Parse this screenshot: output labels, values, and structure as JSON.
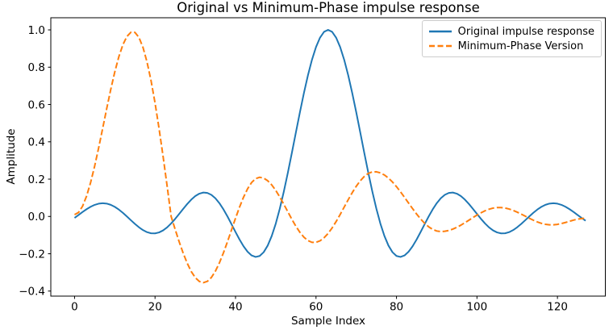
{
  "figure": {
    "background": "#ffffff",
    "text_color": "#000000",
    "spine_color": "#000000"
  },
  "chart_data": {
    "type": "line",
    "title": "Original vs Minimum-Phase impulse response",
    "xlabel": "Sample Index",
    "ylabel": "Amplitude",
    "grid": false,
    "legend": {
      "position": "upper right",
      "border_color": "#cccccc",
      "background": "#ffffff"
    },
    "xlim": [
      -5.9,
      131.9
    ],
    "ylim": [
      -0.427,
      1.065
    ],
    "x_ticks": {
      "values": [
        0,
        20,
        40,
        60,
        80,
        100,
        120
      ],
      "labels": [
        "0",
        "20",
        "40",
        "60",
        "80",
        "100",
        "120"
      ]
    },
    "y_ticks": {
      "values": [
        -0.4,
        -0.2,
        0.0,
        0.2,
        0.4,
        0.6,
        0.8,
        1.0
      ],
      "labels": [
        "−0.4",
        "−0.2",
        "0.0",
        "0.2",
        "0.4",
        "0.6",
        "0.8",
        "1.0"
      ]
    },
    "x_start": 0,
    "x_step": 1,
    "n_samples": 128,
    "series": [
      {
        "name": "Original impulse response",
        "color": "#1f77b4",
        "style": "solid",
        "linewidth": 2,
        "values": [
          -0.0079,
          0.008,
          0.024,
          0.039,
          0.052,
          0.0621,
          0.0686,
          0.0709,
          0.0688,
          0.0622,
          0.0514,
          0.0369,
          0.0194,
          0.0,
          -0.0202,
          -0.0399,
          -0.058,
          -0.073,
          -0.0841,
          -0.0903,
          -0.0909,
          -0.0857,
          -0.0748,
          -0.0585,
          -0.0376,
          -0.0131,
          0.0135,
          0.0407,
          0.0668,
          0.0902,
          0.1091,
          0.1221,
          0.1281,
          0.1261,
          0.1158,
          0.0973,
          0.071,
          0.0381,
          0.0,
          -0.0412,
          -0.0833,
          -0.1238,
          -0.16,
          -0.1892,
          -0.209,
          -0.2171,
          -0.2118,
          -0.1916,
          -0.1559,
          -0.1046,
          -0.0384,
          0.0416,
          0.1332,
          0.2339,
          0.3406,
          0.45,
          0.5584,
          0.6618,
          0.7568,
          0.8399,
          0.9079,
          0.9584,
          0.9895,
          1.0,
          0.9895,
          0.9584,
          0.9079,
          0.8399,
          0.7568,
          0.6618,
          0.5584,
          0.45,
          0.3406,
          0.2339,
          0.1332,
          0.0416,
          -0.0384,
          -0.1046,
          -0.1559,
          -0.1916,
          -0.2118,
          -0.2171,
          -0.209,
          -0.1892,
          -0.16,
          -0.1238,
          -0.0833,
          -0.0412,
          0.0,
          0.0381,
          0.071,
          0.0973,
          0.1158,
          0.1261,
          0.1281,
          0.1221,
          0.1091,
          0.0902,
          0.0668,
          0.0407,
          0.0135,
          -0.0131,
          -0.0376,
          -0.0585,
          -0.0748,
          -0.0857,
          -0.0909,
          -0.0903,
          -0.0841,
          -0.073,
          -0.058,
          -0.0399,
          -0.0202,
          0.0,
          0.0194,
          0.0369,
          0.0514,
          0.0622,
          0.0688,
          0.0709,
          0.0686,
          0.0621,
          0.052,
          0.039,
          0.024,
          0.008,
          -0.0079,
          -0.0229
        ]
      },
      {
        "name": "Minimum-Phase Version",
        "color": "#ff7f0e",
        "style": "dashed",
        "linewidth": 2,
        "values": [
          0.01,
          0.0214,
          0.0553,
          0.1099,
          0.1827,
          0.2705,
          0.3689,
          0.4735,
          0.5793,
          0.6814,
          0.775,
          0.8558,
          0.9198,
          0.9645,
          0.9871,
          0.9866,
          0.9597,
          0.9065,
          0.8284,
          0.7287,
          0.6082,
          0.4708,
          0.3217,
          0.1634,
          0.0,
          -0.0693,
          -0.1359,
          -0.1972,
          -0.251,
          -0.2952,
          -0.328,
          -0.3482,
          -0.355,
          -0.3479,
          -0.327,
          -0.2934,
          -0.2486,
          -0.1951,
          -0.1354,
          -0.0725,
          -0.0096,
          0.0501,
          0.1036,
          0.1484,
          0.182,
          0.2029,
          0.21,
          0.2053,
          0.1914,
          0.1691,
          0.1395,
          0.1043,
          0.0654,
          0.0248,
          -0.0152,
          -0.0525,
          -0.0851,
          -0.1113,
          -0.1294,
          -0.1388,
          -0.139,
          -0.1307,
          -0.1145,
          -0.0912,
          -0.0617,
          -0.0273,
          0.0105,
          0.05,
          0.0895,
          0.1273,
          0.1617,
          0.1912,
          0.2145,
          0.2307,
          0.239,
          0.2393,
          0.2335,
          0.2222,
          0.2057,
          0.1846,
          0.1598,
          0.132,
          0.1024,
          0.0719,
          0.0418,
          0.0129,
          -0.0137,
          -0.0367,
          -0.0556,
          -0.0695,
          -0.0781,
          -0.081,
          -0.0795,
          -0.0751,
          -0.0679,
          -0.0582,
          -0.0467,
          -0.0337,
          -0.02,
          -0.0061,
          0.0073,
          0.0197,
          0.0304,
          0.0388,
          0.0447,
          0.0476,
          0.0477,
          0.045,
          0.0398,
          0.0323,
          0.0231,
          0.0126,
          0.0015,
          -0.0096,
          -0.0201,
          -0.0293,
          -0.0368,
          -0.042,
          -0.0447,
          -0.0447,
          -0.0424,
          -0.038,
          -0.0323,
          -0.0259,
          -0.0197,
          -0.0146,
          -0.0112,
          -0.01
        ]
      }
    ]
  }
}
